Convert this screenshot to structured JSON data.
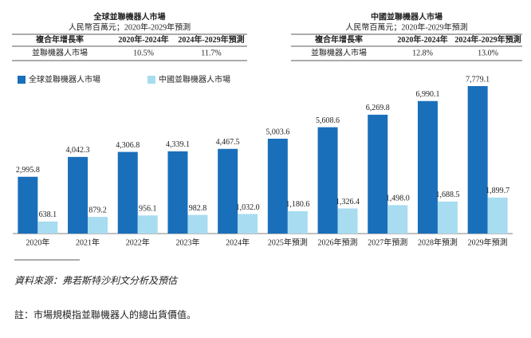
{
  "tables": [
    {
      "title": "全球並聯機器人市場",
      "subtitle": "人民幣百萬元；2020年-2029年預測",
      "header": [
        "複合年增長率",
        "2020年-2024年",
        "2024年-2029年預測"
      ],
      "rows": [
        [
          "並聯機器人市場",
          "10.5%",
          "11.7%"
        ]
      ]
    },
    {
      "title": "中國並聯機器人市場",
      "subtitle": "人民幣百萬元；2020年-2029年預測",
      "header": [
        "複合年增長率",
        "2020年-2024年",
        "2024年-2029年預測"
      ],
      "rows": [
        [
          "並聯機器人市場",
          "12.8%",
          "13.0%"
        ]
      ]
    }
  ],
  "chart_data": {
    "type": "bar",
    "categories": [
      "2020年",
      "2021年",
      "2022年",
      "2023年",
      "2024年",
      "2025年預測",
      "2026年預測",
      "2027年預測",
      "2028年預測",
      "2029年預測"
    ],
    "series": [
      {
        "name": "全球並聯機器人市場",
        "color": "#1a6fba",
        "values": [
          2995.8,
          4042.3,
          4306.8,
          4339.1,
          4467.5,
          5003.6,
          5608.6,
          6269.8,
          6990.1,
          7779.1
        ],
        "value_labels": [
          "2,995.8",
          "4,042.3",
          "4,306.8",
          "4,339.1",
          "4,467.5",
          "5,003.6",
          "5,608.6",
          "6,269.8",
          "6,990.1",
          "7,779.1"
        ]
      },
      {
        "name": "中國並聯機器人市場",
        "color": "#a8dcf0",
        "values": [
          638.1,
          879.2,
          956.1,
          982.8,
          1032.0,
          1180.6,
          1326.4,
          1498.0,
          1688.5,
          1899.7
        ],
        "value_labels": [
          "638.1",
          "879.2",
          "956.1",
          "982.8",
          "1,032.0",
          "1,180.6",
          "1,326.4",
          "1,498.0",
          "1,688.5",
          "1,899.7"
        ]
      }
    ]
  },
  "source": "資料來源：弗若斯特沙利文分析及預估",
  "note": "註：市場規模指並聯機器人的總出貨價值。"
}
